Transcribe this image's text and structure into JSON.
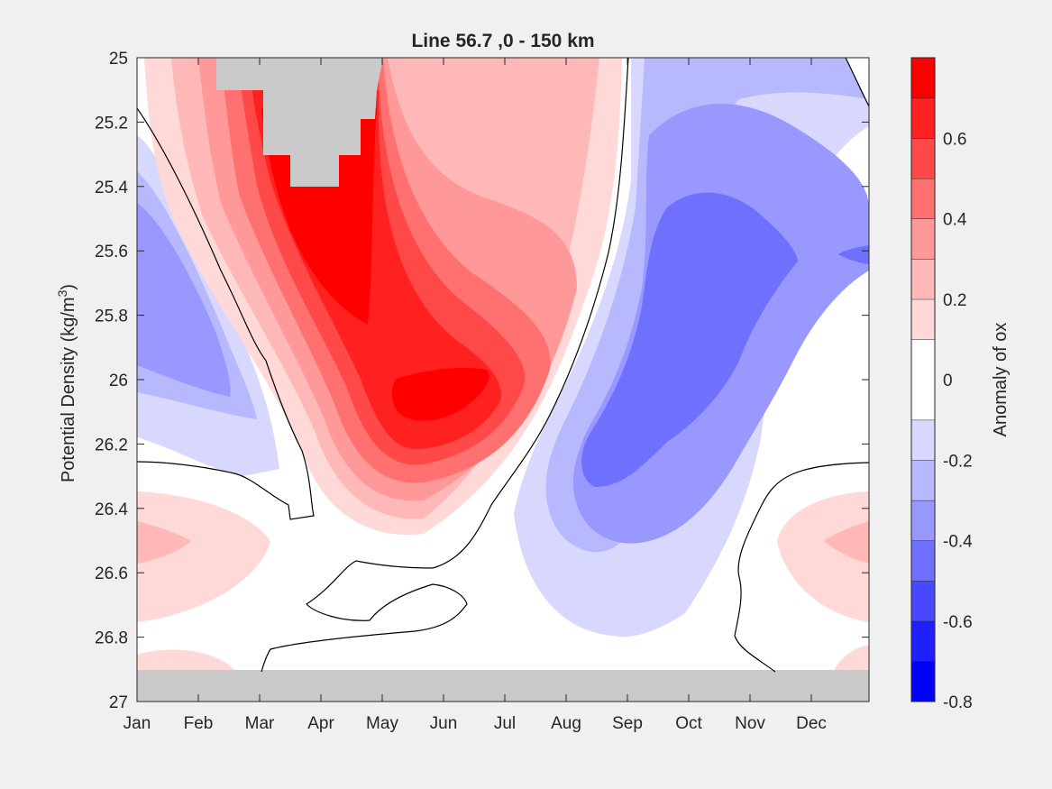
{
  "chart_data": {
    "type": "heatmap",
    "title": "Line 56.7 ,0 - 150 km",
    "xlabel": "",
    "ylabel": "Potential Density (kg/m",
    "ylabel_sup": "3",
    "ylabel_close": ")",
    "x_categories": [
      "Jan",
      "Feb",
      "Mar",
      "Apr",
      "May",
      "Jun",
      "Jul",
      "Aug",
      "Sep",
      "Oct",
      "Nov",
      "Dec"
    ],
    "y_ticks": [
      "25",
      "25.2",
      "25.4",
      "25.6",
      "25.8",
      "26",
      "26.2",
      "26.4",
      "26.6",
      "26.8",
      "27"
    ],
    "ylim": [
      25,
      27
    ],
    "y_reversed": true,
    "grid": false,
    "colorbar": {
      "label": "Anomaly of ox",
      "range": [
        -0.8,
        0.8
      ],
      "ticks": [
        "0.6",
        "0.4",
        "0.2",
        "0",
        "-0.2",
        "-0.4",
        "-0.6",
        "-0.8"
      ],
      "tick_values": [
        0.6,
        0.4,
        0.2,
        0,
        -0.2,
        -0.4,
        -0.6,
        -0.8
      ],
      "levels": [
        -0.8,
        -0.7,
        -0.6,
        -0.5,
        -0.4,
        -0.3,
        -0.2,
        -0.1,
        0.1,
        0.2,
        0.3,
        0.4,
        0.5,
        0.6,
        0.7,
        0.8
      ],
      "colors": [
        "#0000ff",
        "#2020ff",
        "#4848ff",
        "#7070ff",
        "#9898ff",
        "#b8b8ff",
        "#d8d8ff",
        "#ffffff",
        "#ffd8d8",
        "#ffb8b8",
        "#ff9898",
        "#ff7070",
        "#ff4848",
        "#ff2020",
        "#ff0000"
      ]
    },
    "missing_color": "#cacaca",
    "features": [
      {
        "name": "max-positive-anomaly",
        "month": "Apr",
        "density": 25.6,
        "value": 0.75
      },
      {
        "name": "positive-core",
        "month": "May",
        "density": 26.05,
        "value": 0.65
      },
      {
        "name": "negative-core-autumn",
        "month": "Oct",
        "density": 25.9,
        "value": -0.45
      },
      {
        "name": "negative-core-winter",
        "month": "Jan",
        "density": 25.8,
        "value": -0.35
      },
      {
        "name": "no-data-top",
        "month": "Apr",
        "density": 25.2,
        "value": null
      },
      {
        "name": "no-data-bottom",
        "month": "Jul",
        "density": 26.95,
        "value": null
      }
    ]
  }
}
